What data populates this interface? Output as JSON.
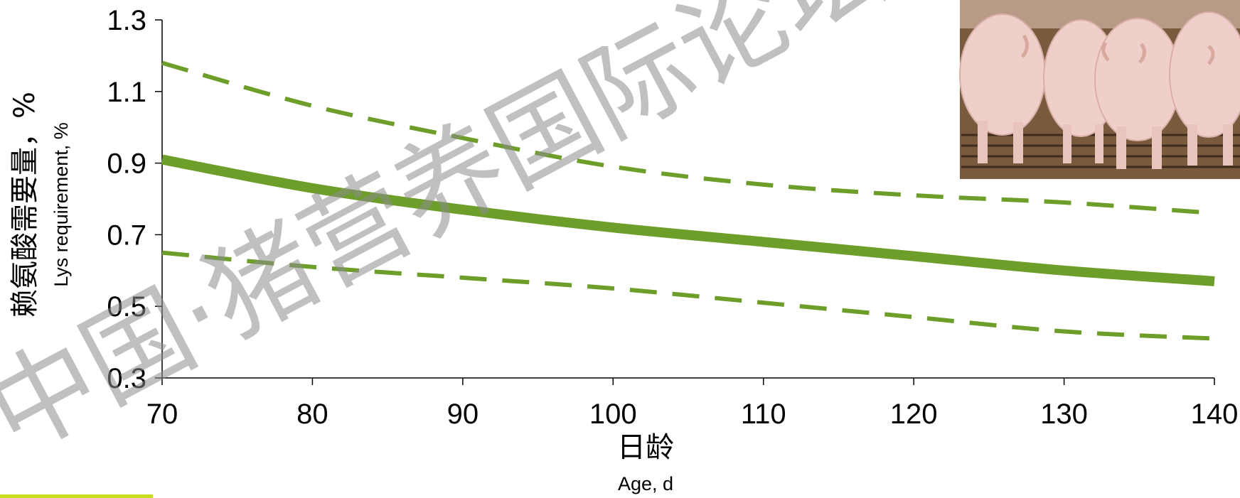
{
  "chart_data": {
    "type": "line",
    "title": "",
    "xlabel": "日龄",
    "xlabel_en": "Age, d",
    "ylabel": "赖氨酸需要量，%",
    "ylabel_en": "Lys requirement, %",
    "xlim": [
      70,
      140
    ],
    "ylim": [
      0.3,
      1.3
    ],
    "xticks": [
      70,
      80,
      90,
      100,
      110,
      120,
      130,
      140
    ],
    "yticks": [
      "0.3",
      "0.5",
      "0.7",
      "0.9",
      "1.1",
      "1.3"
    ],
    "grid": false,
    "legend": "none",
    "x": [
      70,
      80,
      90,
      100,
      110,
      120,
      130,
      140
    ],
    "series": [
      {
        "style": "solid",
        "values": [
          0.91,
          0.83,
          0.77,
          0.72,
          0.68,
          0.64,
          0.6,
          0.57
        ]
      },
      {
        "style": "dashed",
        "values": [
          1.18,
          1.06,
          0.97,
          0.89,
          0.84,
          0.81,
          0.79,
          0.76
        ]
      },
      {
        "style": "dashed",
        "values": [
          0.65,
          0.61,
          0.58,
          0.55,
          0.51,
          0.47,
          0.43,
          0.41
        ]
      }
    ],
    "colors": {
      "line": "#6e9e2a",
      "axis": "#000000",
      "accent_bar": "#c6de1f"
    }
  },
  "watermark": "中国·猪营养国际论坛技术资",
  "photo": {
    "subject": "pigs-rear-view"
  }
}
